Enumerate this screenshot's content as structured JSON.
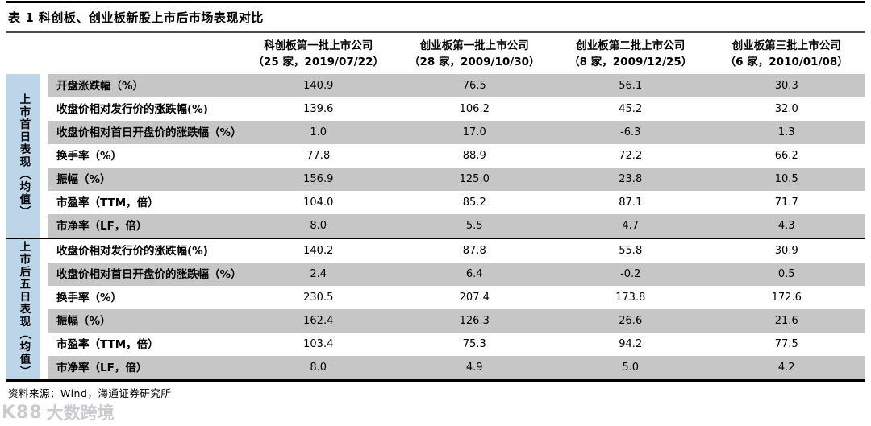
{
  "title": "表 1 科创板、创业板新股上市后市场表现对比",
  "columns": [
    {
      "name": "科创板第一批上市公司",
      "detail": "（25 家，2019/07/22）"
    },
    {
      "name": "创业板第一批上市公司",
      "detail": "（28 家，2009/10/30）"
    },
    {
      "name": "创业板第二批上市公司",
      "detail": "（8 家，2009/12/25）"
    },
    {
      "name": "创业板第三批上市公司",
      "detail": "（6 家，2010/01/08）"
    }
  ],
  "groups": [
    {
      "label": "上市首日表现（均值）",
      "rows": [
        {
          "metric": "开盘涨跌幅（%）",
          "values": [
            "140.9",
            "76.5",
            "56.1",
            "30.3"
          ]
        },
        {
          "metric": "收盘价相对发行价的涨跌幅(%)",
          "values": [
            "139.6",
            "106.2",
            "45.2",
            "32.0"
          ]
        },
        {
          "metric": "收盘价相对首日开盘价的涨跌幅（%）",
          "values": [
            "1.0",
            "17.0",
            "-6.3",
            "1.3"
          ]
        },
        {
          "metric": "换手率（%）",
          "values": [
            "77.8",
            "88.9",
            "72.2",
            "66.2"
          ]
        },
        {
          "metric": "振幅（%）",
          "values": [
            "156.9",
            "125.0",
            "23.8",
            "10.5"
          ]
        },
        {
          "metric": "市盈率（TTM，倍）",
          "values": [
            "104.0",
            "85.2",
            "87.1",
            "71.7"
          ]
        },
        {
          "metric": "市净率（LF，倍）",
          "values": [
            "8.0",
            "5.5",
            "4.7",
            "4.3"
          ]
        }
      ]
    },
    {
      "label": "上市后五日表现（均值）",
      "rows": [
        {
          "metric": "收盘价相对发行价的涨跌幅(%)",
          "values": [
            "140.2",
            "87.8",
            "55.8",
            "30.9"
          ]
        },
        {
          "metric": "收盘价相对首日开盘价的涨跌幅（%）",
          "values": [
            "2.4",
            "6.4",
            "-0.2",
            "0.5"
          ]
        },
        {
          "metric": "换手率（%）",
          "values": [
            "230.5",
            "207.4",
            "173.8",
            "172.6"
          ]
        },
        {
          "metric": "振幅（%）",
          "values": [
            "162.4",
            "126.3",
            "26.6",
            "21.6"
          ]
        },
        {
          "metric": "市盈率（TTM，倍）",
          "values": [
            "103.4",
            "75.3",
            "94.2",
            "77.5"
          ]
        },
        {
          "metric": "市净率（LF，倍）",
          "values": [
            "8.0",
            "4.9",
            "5.0",
            "4.2"
          ]
        }
      ]
    }
  ],
  "footer": {
    "source": "资料来源：Wind，海通证券研究所"
  },
  "watermark": {
    "logo": "K88",
    "text": "大数跨境"
  },
  "colors": {
    "group_label_bg": "#BCD5E8",
    "row_alt_bg": "#C6C6C6",
    "rule": "#000000"
  }
}
